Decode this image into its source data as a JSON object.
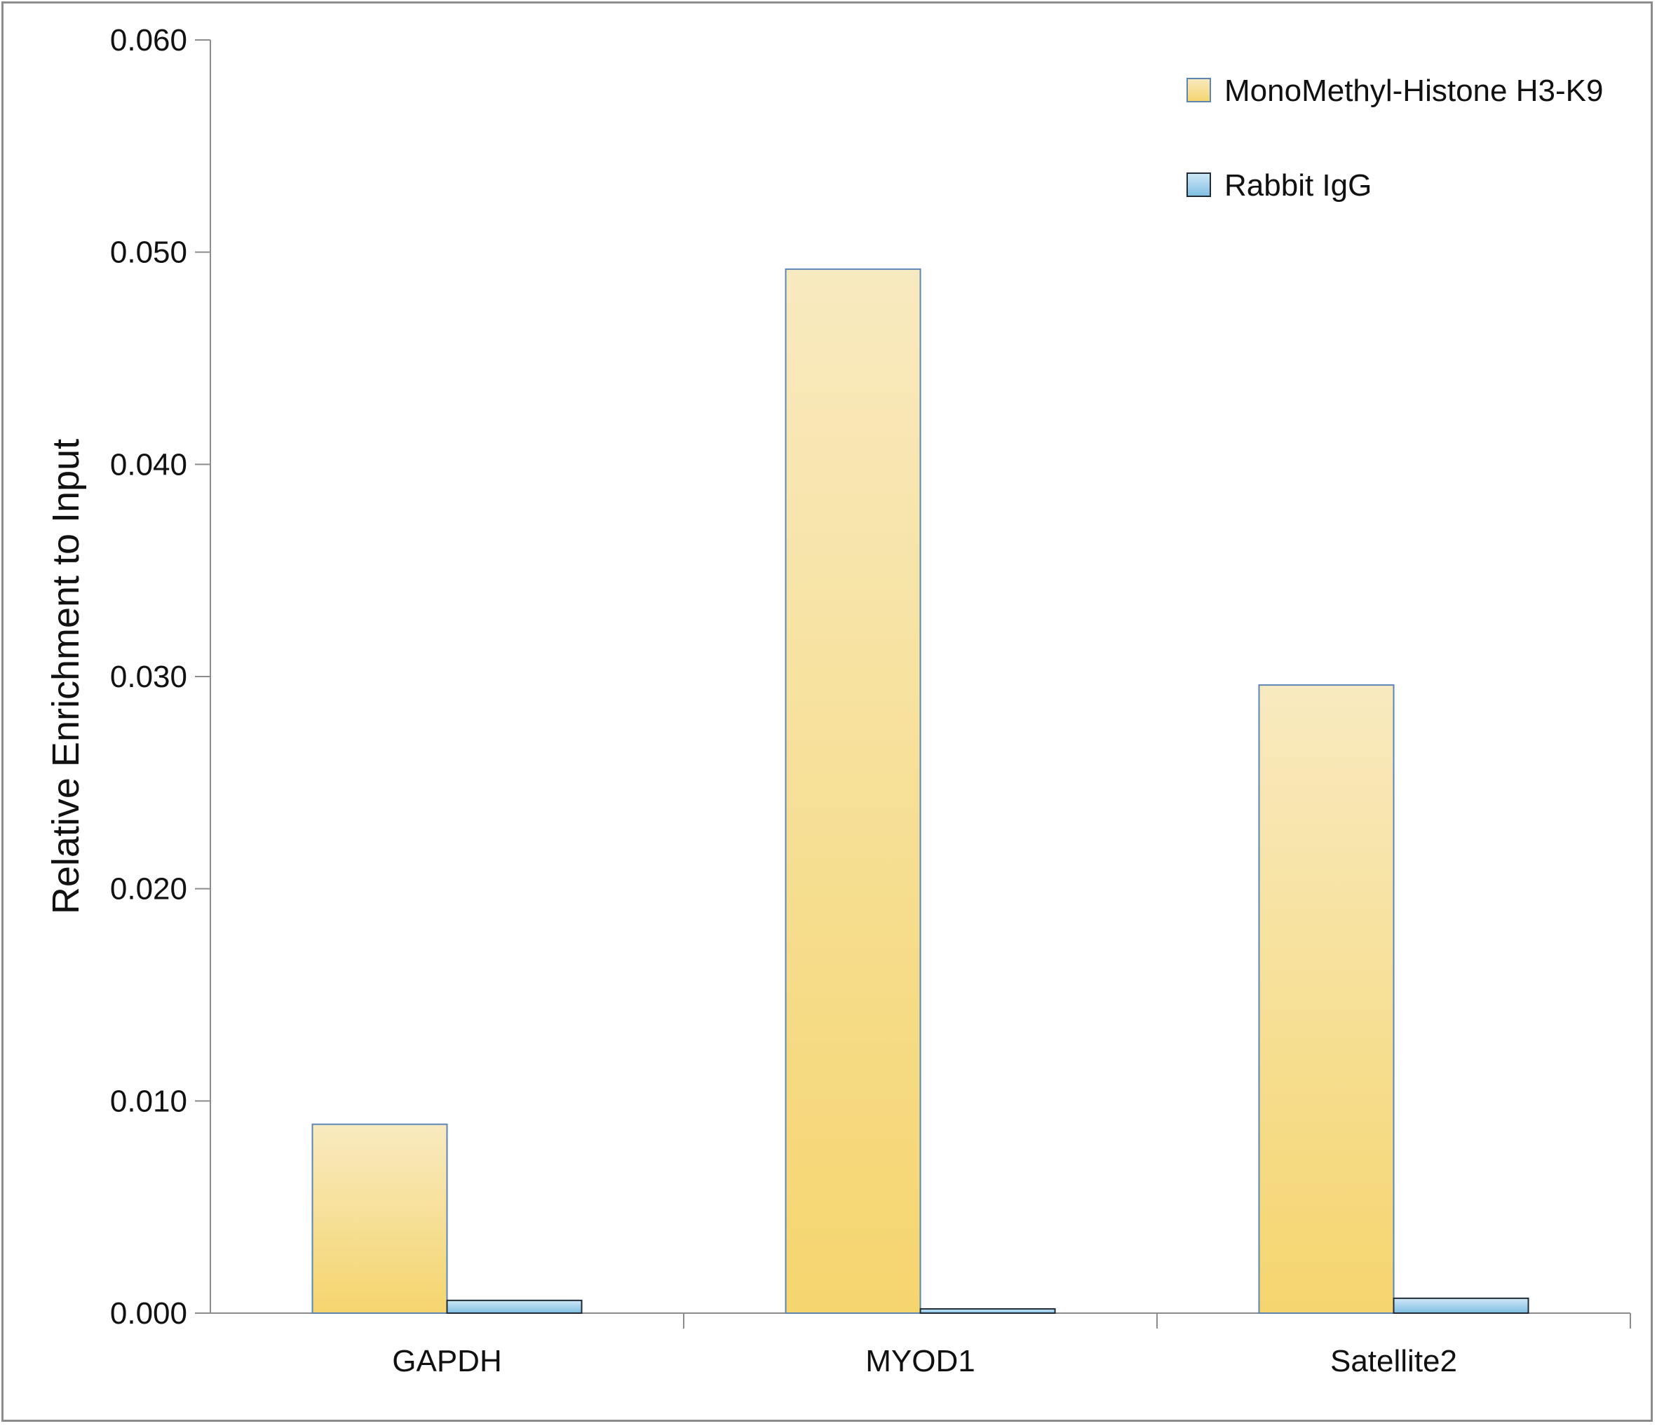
{
  "chart_data": {
    "type": "bar",
    "title": "",
    "xlabel": "",
    "ylabel": "Relative Enrichment to Input",
    "categories": [
      "GAPDH",
      "MYOD1",
      "Satellite2"
    ],
    "series": [
      {
        "name": "MonoMethyl-Histone H3-K9",
        "values": [
          0.0089,
          0.0492,
          0.0296
        ],
        "color": "#f5d978"
      },
      {
        "name": "Rabbit IgG",
        "values": [
          0.0006,
          0.0002,
          0.0007
        ],
        "color": "#8ec8e8"
      }
    ],
    "ylim": [
      0,
      0.06
    ],
    "yticks": [
      "0.000",
      "0.010",
      "0.020",
      "0.030",
      "0.040",
      "0.050",
      "0.060"
    ],
    "grid": false,
    "legend_position": "top-right"
  }
}
